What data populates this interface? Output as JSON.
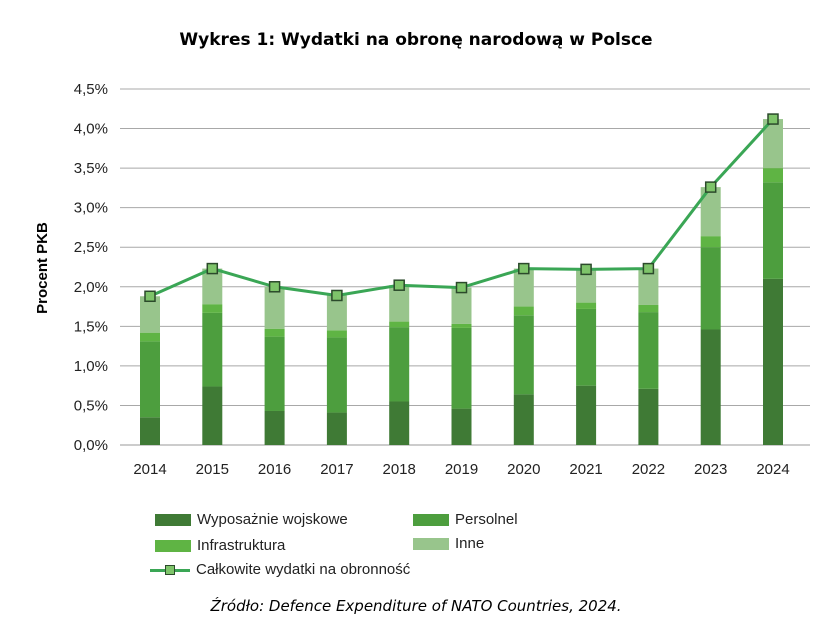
{
  "chart_data": {
    "type": "bar",
    "stacked": true,
    "title": "Wykres 1: Wydatki na obronę narodową w Polsce",
    "ylabel": "Procent PKB",
    "xlabel": "",
    "ylim": [
      0,
      4.5
    ],
    "yticks": [
      "0,0%",
      "0,5%",
      "1,0%",
      "1,5%",
      "2,0%",
      "2,5%",
      "3,0%",
      "3,5%",
      "4,0%",
      "4,5%"
    ],
    "categories": [
      "2014",
      "2015",
      "2016",
      "2017",
      "2018",
      "2019",
      "2020",
      "2021",
      "2022",
      "2023",
      "2024"
    ],
    "grid": true,
    "legend_position": "bottom",
    "series": [
      {
        "name": "Wyposażnie wojskowe",
        "color": "#3f7a35",
        "values": [
          0.35,
          0.74,
          0.43,
          0.41,
          0.55,
          0.46,
          0.64,
          0.75,
          0.71,
          1.46,
          2.1
        ]
      },
      {
        "name": "Persolnel",
        "color": "#4d9e3e",
        "values": [
          0.96,
          0.93,
          0.94,
          0.95,
          0.94,
          1.02,
          1.0,
          0.97,
          0.97,
          1.04,
          1.22
        ]
      },
      {
        "name": "Infrastruktura",
        "color": "#5fb444",
        "values": [
          0.11,
          0.11,
          0.1,
          0.09,
          0.07,
          0.05,
          0.11,
          0.08,
          0.09,
          0.14,
          0.18
        ]
      },
      {
        "name": "Inne",
        "color": "#98c58c",
        "values": [
          0.46,
          0.45,
          0.53,
          0.44,
          0.46,
          0.46,
          0.48,
          0.42,
          0.46,
          0.62,
          0.62
        ]
      }
    ],
    "line": {
      "name": "Całkowite wydatki na obronność",
      "color": "#3aa655",
      "marker_color": "#7ec46a",
      "values": [
        1.88,
        2.23,
        2.0,
        1.89,
        2.02,
        1.99,
        2.23,
        2.22,
        2.23,
        3.26,
        4.12
      ]
    }
  },
  "legend": {
    "item_1": "Wyposażnie wojskowe",
    "item_2": "Persolnel",
    "item_3": "Infrastruktura",
    "item_4": "Inne",
    "item_5": "Całkowite wydatki na obronność"
  },
  "source": "Źródło: Defence Expenditure of NATO Countries, 2024."
}
